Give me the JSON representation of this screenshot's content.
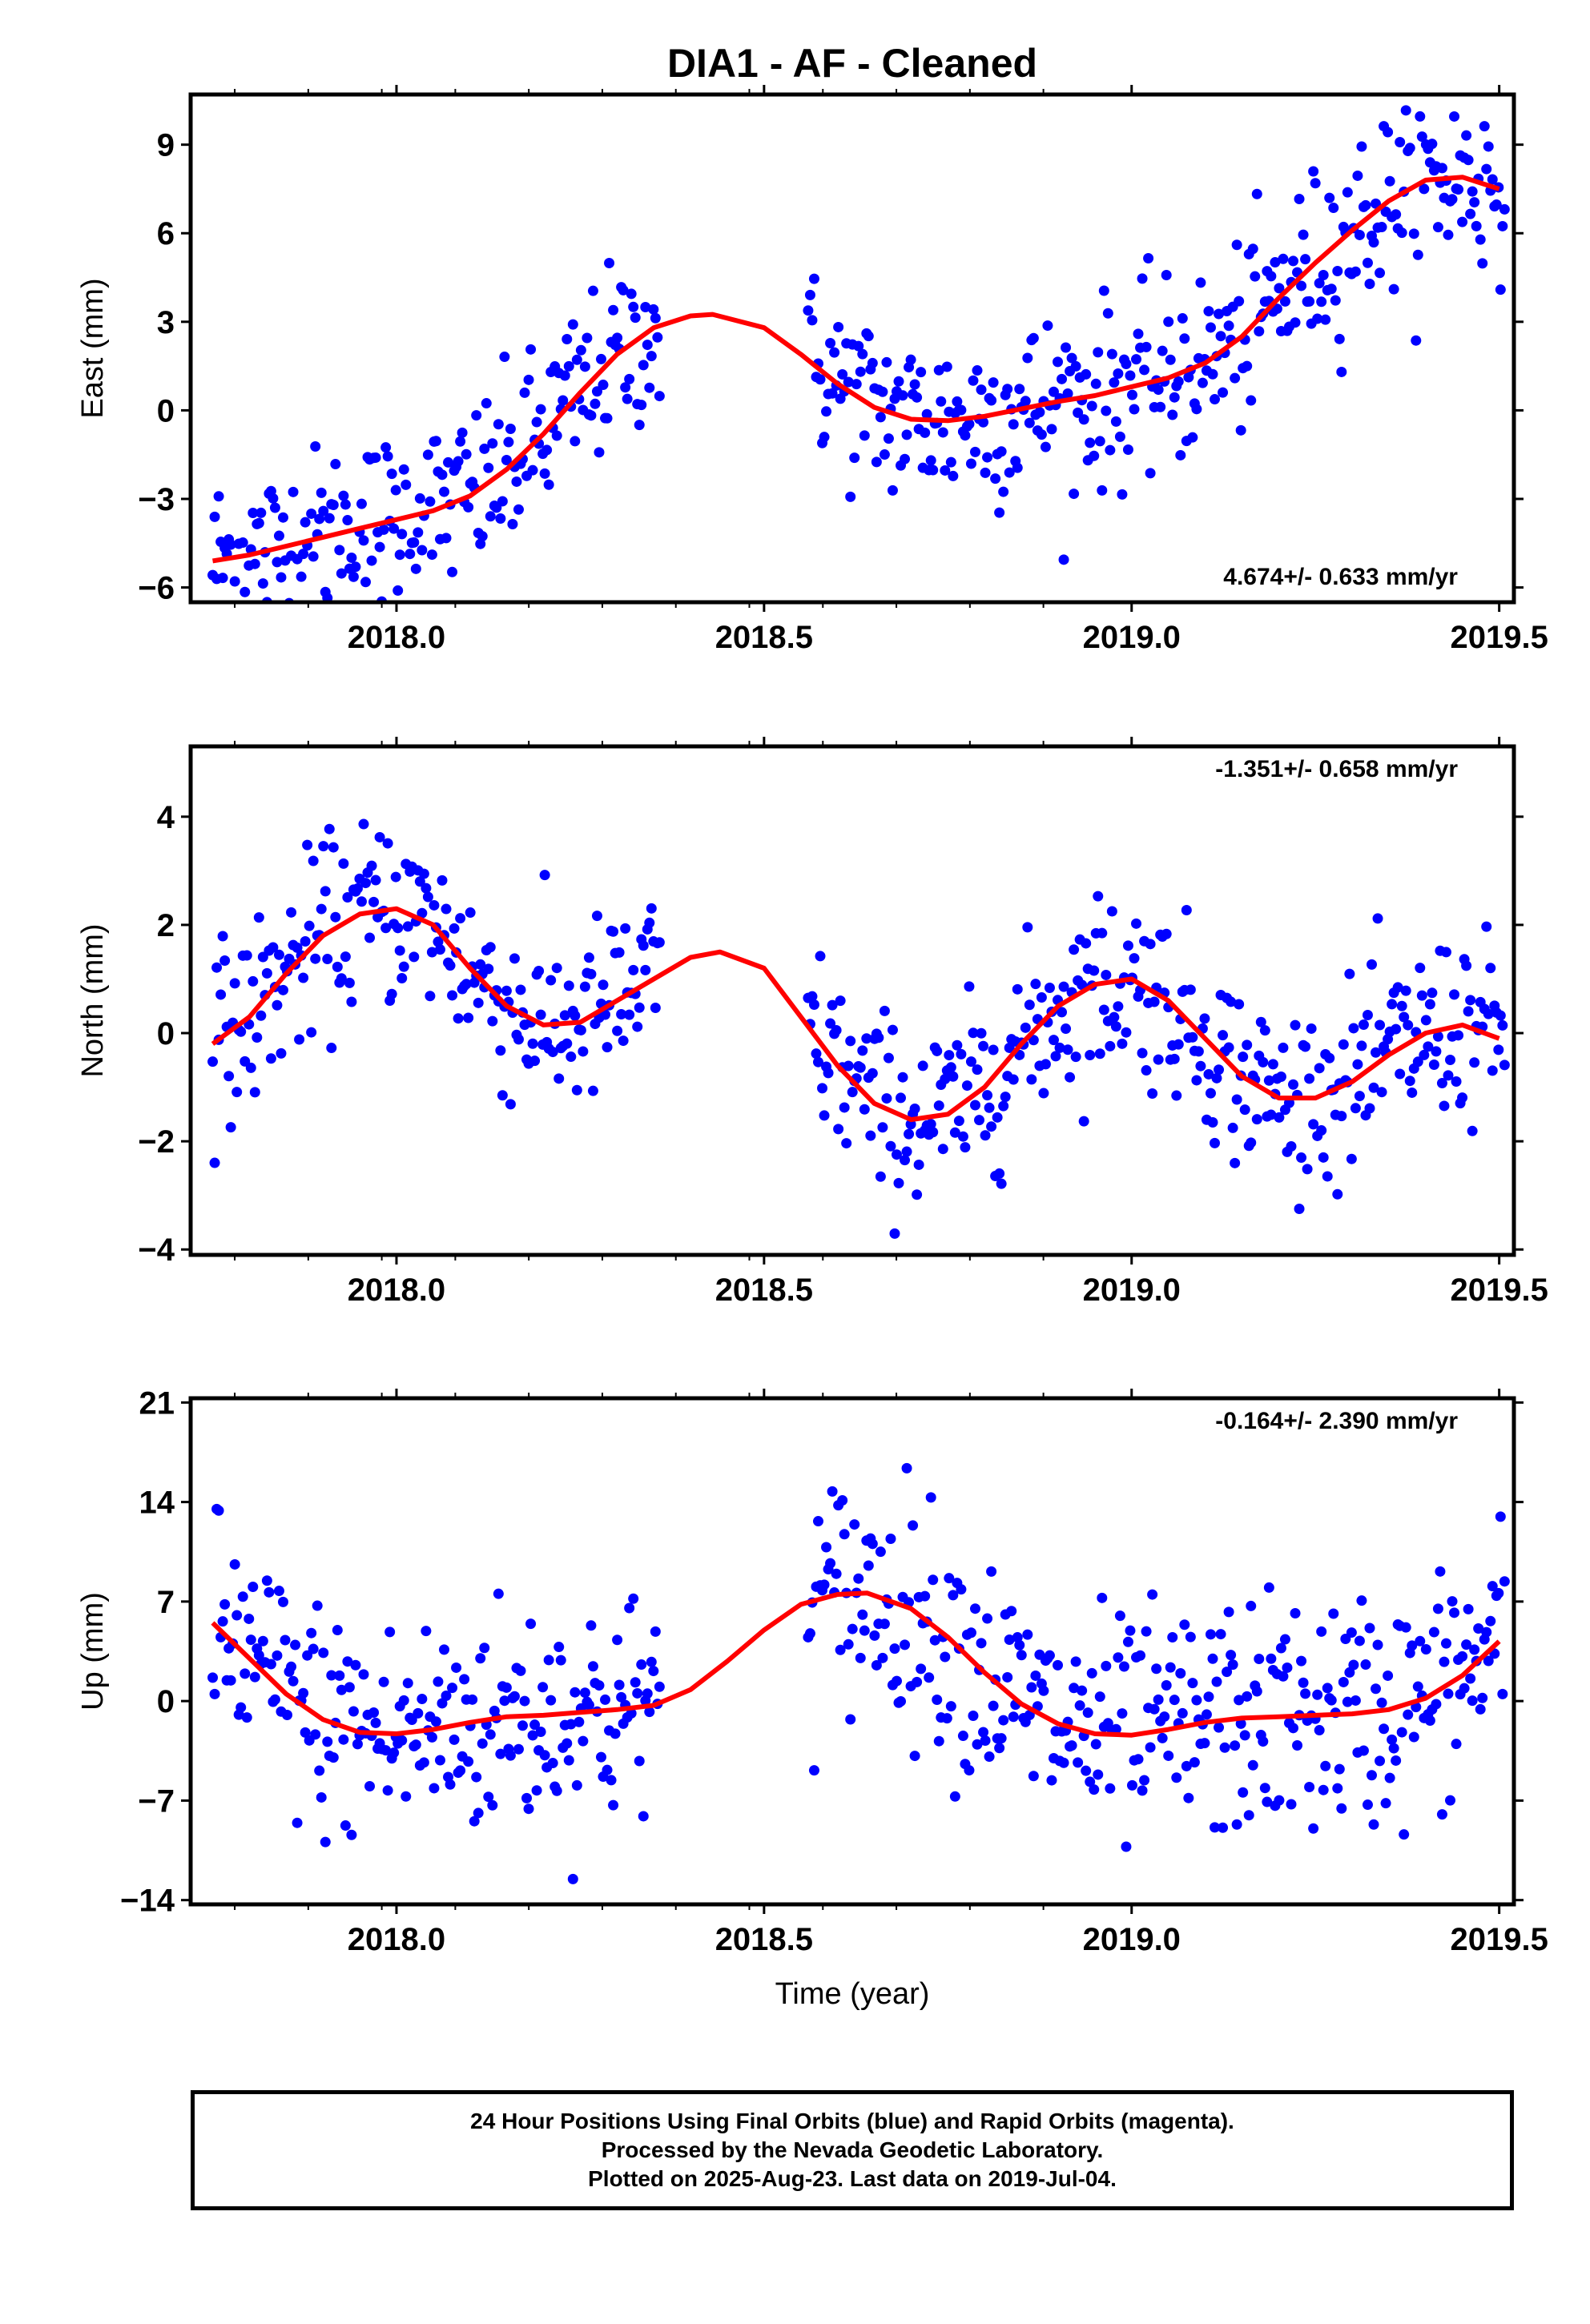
{
  "title": "DIA1  - AF - Cleaned",
  "xlabel": "Time (year)",
  "footer": {
    "lines": [
      "24 Hour Positions Using Final Orbits (blue) and Rapid Orbits (magenta).",
      "Processed by the Nevada Geodetic Laboratory.",
      "Plotted on 2025-Aug-23. Last data on 2019-Jul-04."
    ]
  },
  "colors": {
    "points": "#0000ff",
    "fit": "#ff0000",
    "axis": "#000000"
  },
  "chart_data": [
    {
      "type": "scatter",
      "panel": "east",
      "ylabel": "East (mm)",
      "xlim": [
        2017.72,
        2019.52
      ],
      "ylim": [
        -6.5,
        10.7
      ],
      "xticks": [
        2018.0,
        2018.5,
        2019.0,
        2019.5
      ],
      "xtick_labels": [
        "2018.0",
        "2018.5",
        "2019.0",
        "2019.5"
      ],
      "yticks": [
        -6,
        -3,
        0,
        3,
        6,
        9
      ],
      "ytick_labels": [
        "−6",
        "−3",
        "0",
        "3",
        "6",
        "9"
      ],
      "rate_label": "4.674+/- 0.633 mm/yr",
      "rate_position": "bottom-right",
      "segments": [
        [
          2017.75,
          2018.36
        ],
        [
          2018.56,
          2019.51
        ]
      ],
      "fit": {
        "x": [
          2017.75,
          2017.8,
          2017.85,
          2017.9,
          2017.95,
          2018.0,
          2018.05,
          2018.1,
          2018.15,
          2018.2,
          2018.25,
          2018.3,
          2018.35,
          2018.4,
          2018.43,
          2018.5,
          2018.55,
          2018.6,
          2018.65,
          2018.7,
          2018.75,
          2018.8,
          2018.85,
          2018.9,
          2018.95,
          2019.0,
          2019.05,
          2019.1,
          2019.15,
          2019.2,
          2019.25,
          2019.3,
          2019.35,
          2019.4,
          2019.45,
          2019.5
        ],
        "y": [
          -5.1,
          -4.9,
          -4.6,
          -4.3,
          -4.0,
          -3.7,
          -3.4,
          -2.9,
          -2.0,
          -0.8,
          0.6,
          1.9,
          2.8,
          3.2,
          3.25,
          2.8,
          1.9,
          0.9,
          0.1,
          -0.3,
          -0.35,
          -0.2,
          0.05,
          0.3,
          0.5,
          0.8,
          1.1,
          1.6,
          2.5,
          3.8,
          5.0,
          6.1,
          7.1,
          7.8,
          7.9,
          7.5
        ]
      }
    },
    {
      "type": "scatter",
      "panel": "north",
      "ylabel": "North (mm)",
      "xlim": [
        2017.72,
        2019.52
      ],
      "ylim": [
        -4.1,
        5.3
      ],
      "xticks": [
        2018.0,
        2018.5,
        2019.0,
        2019.5
      ],
      "xtick_labels": [
        "2018.0",
        "2018.5",
        "2019.0",
        "2019.5"
      ],
      "yticks": [
        -4,
        -2,
        0,
        2,
        4
      ],
      "ytick_labels": [
        "−4",
        "−2",
        "0",
        "2",
        "4"
      ],
      "rate_label": "-1.351+/- 0.658 mm/yr",
      "rate_position": "top-right",
      "segments": [
        [
          2017.75,
          2018.36
        ],
        [
          2018.56,
          2019.51
        ]
      ],
      "fit": {
        "x": [
          2017.75,
          2017.8,
          2017.85,
          2017.9,
          2017.95,
          2018.0,
          2018.05,
          2018.1,
          2018.15,
          2018.2,
          2018.25,
          2018.3,
          2018.35,
          2018.4,
          2018.44,
          2018.5,
          2018.55,
          2018.6,
          2018.65,
          2018.7,
          2018.75,
          2018.8,
          2018.85,
          2018.9,
          2018.95,
          2019.0,
          2019.05,
          2019.1,
          2019.15,
          2019.2,
          2019.25,
          2019.3,
          2019.35,
          2019.4,
          2019.45,
          2019.5
        ],
        "y": [
          -0.2,
          0.3,
          1.1,
          1.8,
          2.2,
          2.3,
          2.0,
          1.2,
          0.5,
          0.15,
          0.2,
          0.6,
          1.0,
          1.4,
          1.5,
          1.2,
          0.3,
          -0.6,
          -1.3,
          -1.6,
          -1.5,
          -1.0,
          -0.2,
          0.5,
          0.9,
          1.0,
          0.6,
          -0.1,
          -0.8,
          -1.2,
          -1.2,
          -0.9,
          -0.4,
          0.0,
          0.15,
          -0.1
        ]
      }
    },
    {
      "type": "scatter",
      "panel": "up",
      "ylabel": "Up (mm)",
      "xlim": [
        2017.72,
        2019.52
      ],
      "ylim": [
        -14.3,
        21.3
      ],
      "xticks": [
        2018.0,
        2018.5,
        2019.0,
        2019.5
      ],
      "xtick_labels": [
        "2018.0",
        "2018.5",
        "2019.0",
        "2019.5"
      ],
      "yticks": [
        -14,
        -7,
        0,
        7,
        14,
        21
      ],
      "ytick_labels": [
        "−14",
        "−7",
        "0",
        "7",
        "14",
        "21"
      ],
      "rate_label": "-0.164+/- 2.390 mm/yr",
      "rate_position": "top-right",
      "segments": [
        [
          2017.75,
          2018.36
        ],
        [
          2018.56,
          2019.51
        ]
      ],
      "fit": {
        "x": [
          2017.75,
          2017.8,
          2017.85,
          2017.9,
          2017.95,
          2018.0,
          2018.05,
          2018.1,
          2018.15,
          2018.2,
          2018.25,
          2018.3,
          2018.35,
          2018.4,
          2018.45,
          2018.5,
          2018.55,
          2018.6,
          2018.64,
          2018.7,
          2018.75,
          2018.8,
          2018.85,
          2018.9,
          2018.95,
          2019.0,
          2019.05,
          2019.1,
          2019.15,
          2019.2,
          2019.25,
          2019.3,
          2019.35,
          2019.4,
          2019.45,
          2019.5
        ],
        "y": [
          5.5,
          3.0,
          0.5,
          -1.3,
          -2.2,
          -2.3,
          -2.0,
          -1.5,
          -1.1,
          -1.0,
          -0.8,
          -0.6,
          -0.3,
          0.8,
          2.8,
          5.0,
          6.8,
          7.5,
          7.6,
          6.5,
          4.5,
          2.0,
          -0.2,
          -1.6,
          -2.3,
          -2.4,
          -2.0,
          -1.5,
          -1.2,
          -1.1,
          -1.0,
          -0.9,
          -0.6,
          0.2,
          1.8,
          4.2
        ]
      }
    }
  ]
}
